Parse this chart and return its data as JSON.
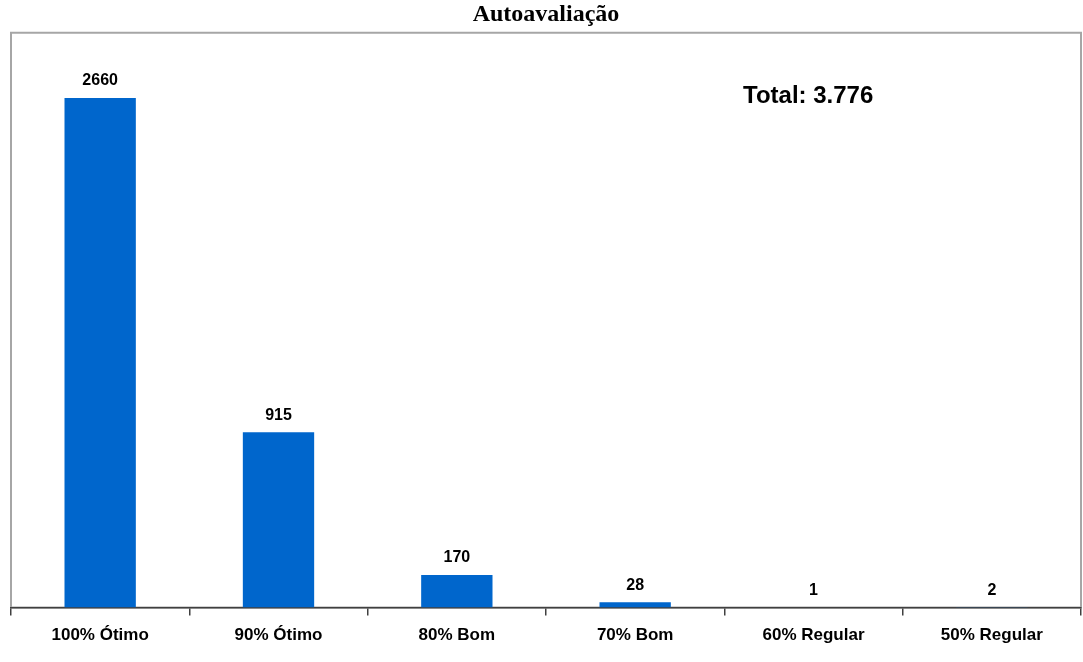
{
  "chart_data": {
    "type": "bar",
    "title": "Autoavaliação",
    "categories": [
      "100% Ótimo",
      "90% Ótimo",
      "80% Bom",
      "70% Bom",
      "60% Regular",
      "50% Regular"
    ],
    "values": [
      2660,
      915,
      170,
      28,
      1,
      2
    ],
    "color": "#0066cc",
    "data_labels": true,
    "grid": false,
    "tick_labels": "x",
    "annotations": [
      "Total: 3.776"
    ]
  }
}
